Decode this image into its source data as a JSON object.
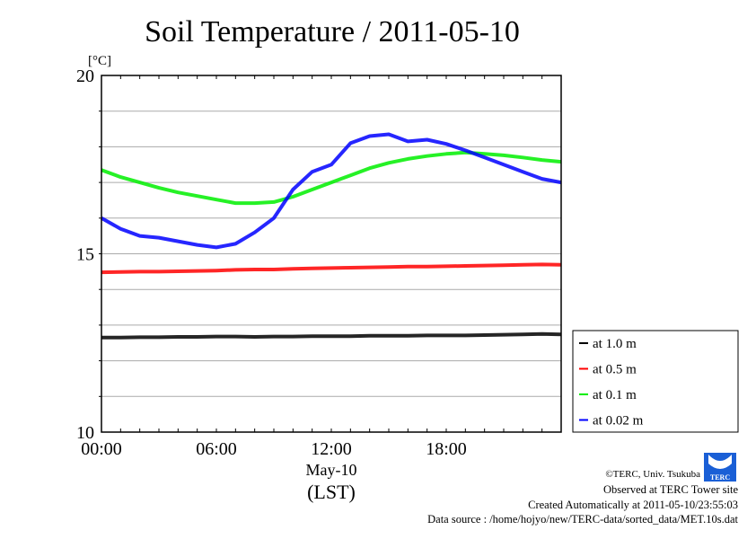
{
  "chart_data": {
    "type": "line",
    "title": "Soil Temperature / 2011-05-10",
    "ylabel": "[°C]",
    "xlabel": "(LST)",
    "date_label": "May-10",
    "ylim": [
      10,
      20
    ],
    "xlim": [
      0,
      24
    ],
    "yticks": [
      10,
      15,
      20
    ],
    "xticks": [
      {
        "v": 0,
        "label": "00:00"
      },
      {
        "v": 6,
        "label": "06:00"
      },
      {
        "v": 12,
        "label": "12:00"
      },
      {
        "v": 18,
        "label": "18:00"
      }
    ],
    "grid": true,
    "legend_position": "right-bottom",
    "x_hours": [
      0,
      1,
      2,
      3,
      4,
      5,
      6,
      7,
      8,
      9,
      10,
      11,
      12,
      13,
      14,
      15,
      16,
      17,
      18,
      19,
      20,
      21,
      22,
      23,
      24
    ],
    "series": [
      {
        "name": "at 1.0 m",
        "color": "#000000",
        "values": [
          12.65,
          12.65,
          12.66,
          12.66,
          12.67,
          12.67,
          12.68,
          12.68,
          12.67,
          12.68,
          12.68,
          12.69,
          12.69,
          12.69,
          12.7,
          12.7,
          12.7,
          12.71,
          12.71,
          12.71,
          12.72,
          12.73,
          12.74,
          12.75,
          12.74
        ]
      },
      {
        "name": "at 0.5 m",
        "color": "#ff0000",
        "values": [
          14.48,
          14.49,
          14.5,
          14.5,
          14.51,
          14.52,
          14.53,
          14.55,
          14.56,
          14.56,
          14.58,
          14.59,
          14.6,
          14.61,
          14.62,
          14.63,
          14.64,
          14.64,
          14.65,
          14.66,
          14.67,
          14.68,
          14.69,
          14.7,
          14.69
        ]
      },
      {
        "name": "at 0.1 m",
        "color": "#00ee00",
        "values": [
          17.35,
          17.15,
          17.0,
          16.85,
          16.72,
          16.62,
          16.52,
          16.42,
          16.42,
          16.45,
          16.6,
          16.8,
          17.0,
          17.2,
          17.4,
          17.55,
          17.66,
          17.74,
          17.8,
          17.84,
          17.8,
          17.76,
          17.7,
          17.63,
          17.58
        ]
      },
      {
        "name": "at 0.02 m",
        "color": "#0000ff",
        "values": [
          16.0,
          15.7,
          15.5,
          15.45,
          15.35,
          15.25,
          15.18,
          15.28,
          15.6,
          16.0,
          16.8,
          17.3,
          17.5,
          18.1,
          18.3,
          18.35,
          18.15,
          18.2,
          18.08,
          17.9,
          17.7,
          17.5,
          17.3,
          17.1,
          17.0
        ]
      }
    ]
  },
  "footer": {
    "copyright": "©TERC, Univ. Tsukuba",
    "observed": "Observed at TERC Tower site",
    "created": "Created Automatically at 2011-05-10/23:55:03",
    "source": "Data source : /home/hojyo/new/TERC-data/sorted_data/MET.10s.dat",
    "logo_text": "TERC"
  }
}
